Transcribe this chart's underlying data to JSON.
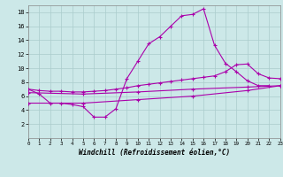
{
  "background_color": "#cce8e8",
  "grid_color": "#aacccc",
  "line_color": "#aa00aa",
  "xlabel": "Windchill (Refroidissement éolien,°C)",
  "ylim": [
    0,
    19
  ],
  "xlim": [
    0,
    23
  ],
  "yticks": [
    2,
    4,
    6,
    8,
    10,
    12,
    14,
    16,
    18
  ],
  "xticks": [
    0,
    1,
    2,
    3,
    4,
    5,
    6,
    7,
    8,
    9,
    10,
    11,
    12,
    13,
    14,
    15,
    16,
    17,
    18,
    19,
    20,
    21,
    22,
    23
  ],
  "curve1_x": [
    0,
    1,
    2,
    3,
    4,
    5,
    6,
    7,
    8,
    9,
    10,
    11,
    12,
    13,
    14,
    15,
    16,
    17,
    18,
    19,
    20,
    21,
    22
  ],
  "curve1_y": [
    7.0,
    6.3,
    5.0,
    5.0,
    4.8,
    4.5,
    3.0,
    3.0,
    4.2,
    8.5,
    11.0,
    13.5,
    14.5,
    16.0,
    17.5,
    17.7,
    18.5,
    13.3,
    10.7,
    9.5,
    8.2,
    7.5,
    7.5
  ],
  "curve2_x": [
    0,
    1,
    2,
    3,
    4,
    5,
    6,
    7,
    8,
    9,
    10,
    11,
    12,
    13,
    14,
    15,
    16,
    17,
    18,
    19,
    20,
    21,
    22,
    23
  ],
  "curve2_y": [
    7.0,
    6.8,
    6.7,
    6.7,
    6.6,
    6.6,
    6.7,
    6.8,
    7.0,
    7.2,
    7.5,
    7.7,
    7.9,
    8.1,
    8.3,
    8.5,
    8.7,
    8.9,
    9.5,
    10.5,
    10.6,
    9.2,
    8.6,
    8.5
  ],
  "curve3_x": [
    0,
    5,
    10,
    15,
    20,
    23
  ],
  "curve3_y": [
    6.5,
    6.3,
    6.6,
    7.0,
    7.3,
    7.5
  ],
  "curve4_x": [
    0,
    5,
    10,
    15,
    20,
    23
  ],
  "curve4_y": [
    5.0,
    5.0,
    5.5,
    6.0,
    6.8,
    7.5
  ]
}
